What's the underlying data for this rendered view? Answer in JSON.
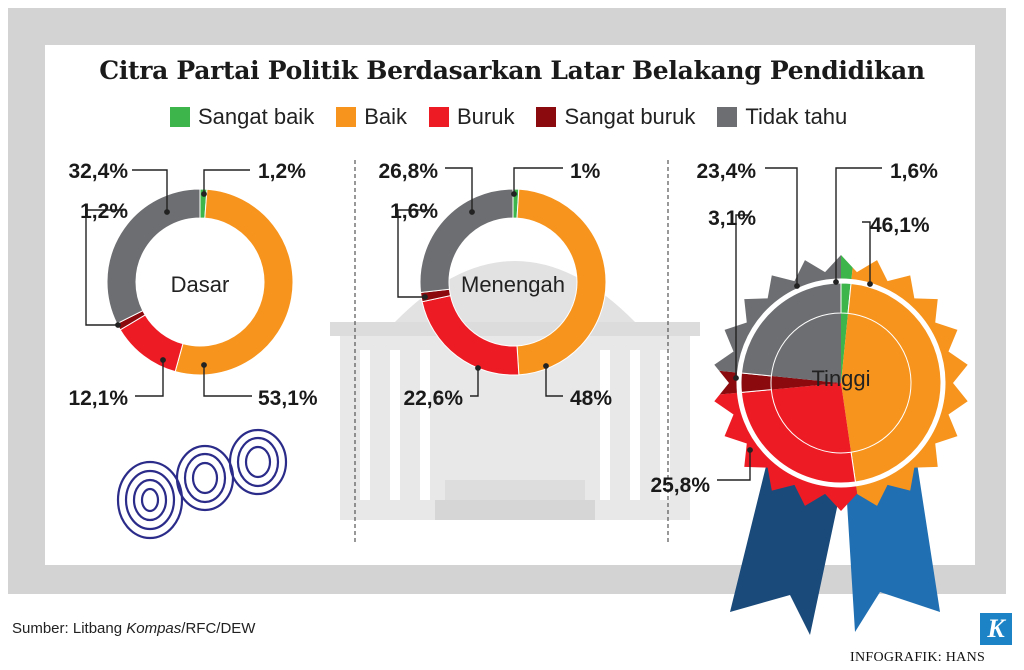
{
  "title": "Citra Partai Politik Berdasarkan Latar Belakang Pendidikan",
  "legend": [
    {
      "label": "Sangat baik",
      "color": "#3db54a"
    },
    {
      "label": "Baik",
      "color": "#f7941d"
    },
    {
      "label": "Buruk",
      "color": "#ed1c24"
    },
    {
      "label": "Sangat buruk",
      "color": "#8b0a0e"
    },
    {
      "label": "Tidak tahu",
      "color": "#6d6e71"
    }
  ],
  "chart_data": {
    "type": "pie",
    "categories": [
      "Sangat baik",
      "Baik",
      "Buruk",
      "Sangat buruk",
      "Tidak tahu"
    ],
    "series": [
      {
        "name": "Dasar",
        "values": [
          1.2,
          53.1,
          12.1,
          1.2,
          32.4
        ],
        "labels": [
          "1,2%",
          "53,1%",
          "12,1%",
          "1,2%",
          "32,4%"
        ]
      },
      {
        "name": "Menengah",
        "values": [
          1,
          48,
          22.6,
          1.6,
          26.8
        ],
        "labels": [
          "1%",
          "48%",
          "22,6%",
          "1,6%",
          "26,8%"
        ]
      },
      {
        "name": "Tinggi",
        "values": [
          1.6,
          46.1,
          25.8,
          3.1,
          23.4
        ],
        "labels": [
          "1,6%",
          "46,1%",
          "25,8%",
          "3,1%",
          "23,4%"
        ]
      }
    ]
  },
  "source": {
    "prefix": "Sumber: Litbang ",
    "italic": "Kompas",
    "suffix": "/RFC/DEW"
  },
  "credit": "INFOGRAFIK: HANS",
  "logo_letter": "K"
}
